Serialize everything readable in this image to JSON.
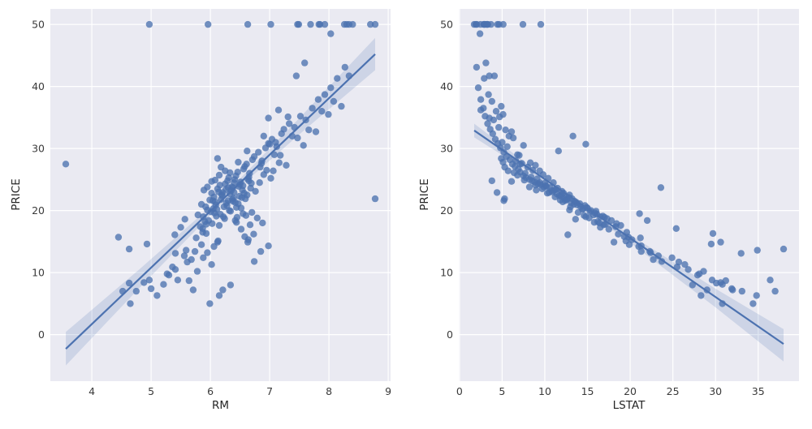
{
  "figure": {
    "background": "#ffffff"
  },
  "chart_data": {
    "type": "scatter",
    "style": {
      "panel_bg": "#eaeaf2",
      "grid_color": "#ffffff",
      "point_color": "#4c72b0",
      "line_color": "#4c72b0",
      "band_color": "#4c72b0",
      "point_opacity": 0.78,
      "band_opacity": 0.18,
      "tick_label_color": "#3a3a3a",
      "axis_label_color": "#262626"
    },
    "columns": [
      "RM",
      "LSTAT",
      "PRICE"
    ],
    "points": [
      [
        5.83,
        18.3,
        17.4
      ],
      [
        5.88,
        14.8,
        19.0
      ],
      [
        5.91,
        16.2,
        18.2
      ],
      [
        5.95,
        12.9,
        20.1
      ],
      [
        5.87,
        19.6,
        16.5
      ],
      [
        5.93,
        17.1,
        17.8
      ],
      [
        5.76,
        21.2,
        15.6
      ],
      [
        5.79,
        15.7,
        19.3
      ],
      [
        5.85,
        13.4,
        21.0
      ],
      [
        5.99,
        11.8,
        21.7
      ],
      [
        6.02,
        10.3,
        22.8
      ],
      [
        6.05,
        14.5,
        20.3
      ],
      [
        6.08,
        12.1,
        21.4
      ],
      [
        6.1,
        16.8,
        19.1
      ],
      [
        6.12,
        9.7,
        23.5
      ],
      [
        6.03,
        18.4,
        17.9
      ],
      [
        6.06,
        11.2,
        22.2
      ],
      [
        6.09,
        13.8,
        20.9
      ],
      [
        6.14,
        10.9,
        23.0
      ],
      [
        6.01,
        15.3,
        19.8
      ],
      [
        6.16,
        8.9,
        24.1
      ],
      [
        6.18,
        12.6,
        21.8
      ],
      [
        6.21,
        10.5,
        22.9
      ],
      [
        6.23,
        14.2,
        20.6
      ],
      [
        6.25,
        9.2,
        24.3
      ],
      [
        6.17,
        16.1,
        19.4
      ],
      [
        6.2,
        11.7,
        22.4
      ],
      [
        6.27,
        13.1,
        21.2
      ],
      [
        6.29,
        8.5,
        24.8
      ],
      [
        6.24,
        17.3,
        18.7
      ],
      [
        6.31,
        7.8,
        25.3
      ],
      [
        6.33,
        11.4,
        22.7
      ],
      [
        6.36,
        9.9,
        23.8
      ],
      [
        6.38,
        13.5,
        21.5
      ],
      [
        6.41,
        8.2,
        25.0
      ],
      [
        6.32,
        15.4,
        20.0
      ],
      [
        6.35,
        10.8,
        23.2
      ],
      [
        6.39,
        12.3,
        22.0
      ],
      [
        6.43,
        7.5,
        25.6
      ],
      [
        6.44,
        14.9,
        20.5
      ],
      [
        6.46,
        7.1,
        26.2
      ],
      [
        6.48,
        10.2,
        23.9
      ],
      [
        6.51,
        8.8,
        24.6
      ],
      [
        6.53,
        12.8,
        22.1
      ],
      [
        6.56,
        6.9,
        26.7
      ],
      [
        6.47,
        14.1,
        21.1
      ],
      [
        6.5,
        9.5,
        24.2
      ],
      [
        6.54,
        11.1,
        23.3
      ],
      [
        6.58,
        6.5,
        27.1
      ],
      [
        6.59,
        13.2,
        21.9
      ],
      [
        6.61,
        6.2,
        27.5
      ],
      [
        6.63,
        9.1,
        25.1
      ],
      [
        6.66,
        7.7,
        26.0
      ],
      [
        6.68,
        11.5,
        23.6
      ],
      [
        6.71,
        5.9,
        28.2
      ],
      [
        6.62,
        12.9,
        22.5
      ],
      [
        6.65,
        8.4,
        25.4
      ],
      [
        6.69,
        10.0,
        24.4
      ],
      [
        6.74,
        5.5,
        28.7
      ],
      [
        6.76,
        12.0,
        23.1
      ],
      [
        6.81,
        5.2,
        29.4
      ],
      [
        6.84,
        8.0,
        27.0
      ],
      [
        6.87,
        6.6,
        28.0
      ],
      [
        6.9,
        9.8,
        25.8
      ],
      [
        6.93,
        4.8,
        30.1
      ],
      [
        6.83,
        11.0,
        24.5
      ],
      [
        6.86,
        7.3,
        27.6
      ],
      [
        6.95,
        8.6,
        26.5
      ],
      [
        6.98,
        4.5,
        30.8
      ],
      [
        7.02,
        10.4,
        25.2
      ],
      [
        7.04,
        4.2,
        31.5
      ],
      [
        7.08,
        6.8,
        29.0
      ],
      [
        7.12,
        5.6,
        30.3
      ],
      [
        7.16,
        8.3,
        27.7
      ],
      [
        7.2,
        3.9,
        32.4
      ],
      [
        7.06,
        9.4,
        26.4
      ],
      [
        7.1,
        5.0,
        31.0
      ],
      [
        7.18,
        7.0,
        28.9
      ],
      [
        7.24,
        3.6,
        33.1
      ],
      [
        7.28,
        8.9,
        27.3
      ],
      [
        7.33,
        3.3,
        34.0
      ],
      [
        7.38,
        5.8,
        32.0
      ],
      [
        7.42,
        4.6,
        33.4
      ],
      [
        7.47,
        6.3,
        31.7
      ],
      [
        7.52,
        3.0,
        35.2
      ],
      [
        7.57,
        7.5,
        30.5
      ],
      [
        7.61,
        4.0,
        34.6
      ],
      [
        7.66,
        5.4,
        33.0
      ],
      [
        7.72,
        2.8,
        36.5
      ],
      [
        7.78,
        6.1,
        32.7
      ],
      [
        7.82,
        2.5,
        37.9
      ],
      [
        7.88,
        4.3,
        36.0
      ],
      [
        7.93,
        3.4,
        38.7
      ],
      [
        7.99,
        5.1,
        35.5
      ],
      [
        8.03,
        2.2,
        39.8
      ],
      [
        8.08,
        3.8,
        37.6
      ],
      [
        8.14,
        2.9,
        41.3
      ],
      [
        8.21,
        4.9,
        36.8
      ],
      [
        8.27,
        2.0,
        43.1
      ],
      [
        8.34,
        3.5,
        41.7
      ],
      [
        8.78,
        1.73,
        50
      ],
      [
        8.7,
        1.92,
        50
      ],
      [
        8.4,
        2.47,
        50
      ],
      [
        8.34,
        2.87,
        50
      ],
      [
        8.3,
        2.96,
        50
      ],
      [
        7.93,
        3.16,
        50
      ],
      [
        7.85,
        3.32,
        50
      ],
      [
        7.83,
        3.7,
        50
      ],
      [
        7.69,
        4.45,
        50
      ],
      [
        7.49,
        4.63,
        50
      ],
      [
        7.47,
        5.12,
        50
      ],
      [
        7.02,
        7.44,
        50
      ],
      [
        6.63,
        9.53,
        50
      ],
      [
        5.96,
        2.88,
        50
      ],
      [
        4.97,
        3.26,
        50
      ],
      [
        8.26,
        2.03,
        50
      ],
      [
        5.45,
        29.6,
        8.8
      ],
      [
        5.68,
        22.7,
        12.1
      ],
      [
        5.41,
        26.8,
        10.5
      ],
      [
        5.61,
        25.7,
        11.7
      ],
      [
        5.3,
        27.9,
        9.6
      ],
      [
        5.74,
        21.3,
        13.4
      ],
      [
        5.21,
        30.8,
        8.1
      ],
      [
        5.56,
        23.3,
        12.7
      ],
      [
        5.0,
        31.9,
        7.4
      ],
      [
        4.88,
        30.6,
        8.4
      ],
      [
        5.36,
        25.5,
        10.9
      ],
      [
        5.1,
        34.8,
        6.3
      ],
      [
        5.27,
        28.1,
        9.8
      ],
      [
        4.65,
        34.4,
        5.0
      ],
      [
        5.85,
        19.9,
        14.5
      ],
      [
        6.06,
        21.0,
        14.2
      ],
      [
        5.95,
        22.4,
        13.2
      ],
      [
        6.13,
        19.5,
        15.1
      ],
      [
        5.88,
        24.9,
        12.4
      ],
      [
        6.02,
        26.4,
        11.3
      ],
      [
        5.78,
        28.6,
        10.2
      ],
      [
        5.64,
        31.2,
        8.7
      ],
      [
        4.75,
        33.1,
        7.0
      ],
      [
        4.63,
        30.1,
        8.3
      ],
      [
        5.99,
        30.8,
        5.0
      ],
      [
        5.71,
        32.0,
        7.2
      ],
      [
        3.56,
        7.12,
        27.5
      ],
      [
        4.63,
        37.97,
        13.8
      ],
      [
        4.52,
        36.98,
        7.0
      ],
      [
        8.78,
        5.29,
        21.9
      ],
      [
        6.38,
        23.6,
        23.7
      ],
      [
        6.85,
        22.3,
        13.4
      ],
      [
        6.74,
        23.7,
        11.8
      ],
      [
        6.63,
        18.1,
        14.9
      ],
      [
        6.98,
        21.3,
        14.3
      ],
      [
        6.21,
        29.0,
        7.2
      ],
      [
        6.34,
        27.3,
        8.0
      ],
      [
        5.93,
        29.7,
        16.3
      ],
      [
        6.12,
        30.6,
        14.9
      ],
      [
        5.41,
        33.0,
        13.1
      ],
      [
        5.59,
        34.9,
        13.6
      ],
      [
        4.97,
        36.4,
        8.8
      ],
      [
        6.15,
        28.3,
        6.3
      ],
      [
        4.45,
        19.8,
        15.7
      ],
      [
        4.93,
        29.5,
        14.6
      ],
      [
        8.03,
        2.4,
        48.5
      ],
      [
        7.59,
        3.1,
        43.8
      ],
      [
        7.45,
        4.1,
        41.7
      ],
      [
        5.92,
        13.0,
        20.6
      ],
      [
        5.97,
        17.8,
        18.4
      ],
      [
        6.04,
        12.4,
        21.6
      ],
      [
        6.07,
        15.9,
        19.6
      ],
      [
        6.11,
        14.4,
        20.2
      ],
      [
        6.15,
        18.9,
        17.6
      ],
      [
        6.19,
        12.0,
        22.6
      ],
      [
        6.22,
        16.5,
        19.0
      ],
      [
        6.26,
        11.3,
        23.4
      ],
      [
        6.28,
        14.7,
        20.8
      ],
      [
        6.3,
        10.6,
        23.7
      ],
      [
        6.34,
        16.0,
        19.9
      ],
      [
        6.37,
        12.5,
        21.8
      ],
      [
        6.4,
        9.4,
        24.5
      ],
      [
        6.42,
        13.7,
        21.3
      ],
      [
        6.45,
        17.0,
        18.9
      ],
      [
        6.49,
        11.9,
        22.3
      ],
      [
        6.52,
        15.0,
        20.4
      ],
      [
        6.55,
        10.1,
        24.0
      ],
      [
        6.57,
        12.2,
        22.8
      ],
      [
        6.08,
        7.6,
        24.9
      ],
      [
        6.15,
        6.8,
        25.7
      ],
      [
        6.25,
        5.7,
        26.4
      ],
      [
        5.95,
        8.2,
        23.8
      ],
      [
        6.02,
        6.1,
        24.7
      ],
      [
        6.18,
        5.3,
        27.0
      ],
      [
        5.89,
        9.0,
        23.3
      ],
      [
        6.33,
        6.4,
        26.1
      ],
      [
        6.47,
        5.1,
        27.8
      ],
      [
        6.12,
        4.9,
        28.4
      ],
      [
        6.44,
        15.8,
        18.1
      ],
      [
        6.52,
        17.5,
        17.0
      ],
      [
        6.6,
        14.6,
        19.2
      ],
      [
        6.67,
        16.9,
        17.7
      ],
      [
        6.73,
        18.6,
        16.2
      ],
      [
        6.79,
        15.2,
        18.8
      ],
      [
        6.58,
        19.3,
        15.8
      ],
      [
        6.64,
        20.2,
        15.3
      ],
      [
        6.7,
        13.9,
        19.7
      ],
      [
        6.88,
        16.4,
        18.0
      ],
      [
        7.0,
        14.8,
        30.7
      ],
      [
        6.9,
        13.3,
        32.0
      ],
      [
        6.62,
        11.6,
        29.6
      ],
      [
        6.55,
        21.1,
        19.5
      ],
      [
        6.42,
        22.0,
        18.4
      ],
      [
        5.87,
        25.4,
        17.1
      ],
      [
        6.98,
        3.5,
        34.9
      ],
      [
        7.15,
        2.5,
        36.2
      ],
      [
        7.31,
        4.7,
        35.1
      ],
      [
        6.4,
        4.4,
        22.9
      ],
      [
        6.65,
        3.8,
        24.8
      ],
      [
        6.3,
        5.2,
        21.6
      ],
      [
        5.57,
        13.6,
        18.6
      ],
      [
        5.5,
        16.5,
        17.3
      ],
      [
        5.4,
        12.7,
        16.1
      ]
    ],
    "charts": [
      {
        "xlabel": "RM",
        "ylabel": "PRICE",
        "x_index": 0,
        "y_index": 2,
        "xlim": [
          3.3,
          9.04
        ],
        "ylim": [
          -7.5,
          52.5
        ],
        "xticks": [
          4,
          5,
          6,
          7,
          8,
          9
        ],
        "yticks": [
          0,
          10,
          20,
          30,
          40,
          50
        ],
        "grid": true,
        "regression_line": {
          "x": [
            3.561,
            8.78
          ],
          "y": [
            -2.3,
            45.2
          ]
        },
        "ci_band": {
          "x": [
            3.561,
            4.8,
            6.28,
            7.5,
            8.78
          ],
          "upper": [
            0.43,
            10.51,
            22.98,
            34.88,
            47.83
          ],
          "lower": [
            -4.97,
            7.51,
            21.98,
            32.28,
            42.63
          ]
        }
      },
      {
        "xlabel": "LSTAT",
        "ylabel": "PRICE",
        "x_index": 1,
        "y_index": 2,
        "xlim": [
          -0.08,
          39.78
        ],
        "ylim": [
          -7.5,
          52.5
        ],
        "xticks": [
          0,
          5,
          10,
          15,
          20,
          25,
          30,
          35
        ],
        "yticks": [
          0,
          10,
          20,
          30,
          40,
          50
        ],
        "grid": true,
        "regression_line": {
          "x": [
            1.73,
            37.97
          ],
          "y": [
            32.9,
            -1.5
          ]
        },
        "ci_band": {
          "x": [
            1.73,
            8.0,
            12.65,
            20.0,
            30.0,
            37.97
          ],
          "upper": [
            34.0,
            27.45,
            22.92,
            16.1,
            7.4,
            0.88
          ],
          "lower": [
            31.8,
            26.35,
            22.02,
            14.8,
            4.4,
            -4.32
          ]
        }
      }
    ]
  }
}
